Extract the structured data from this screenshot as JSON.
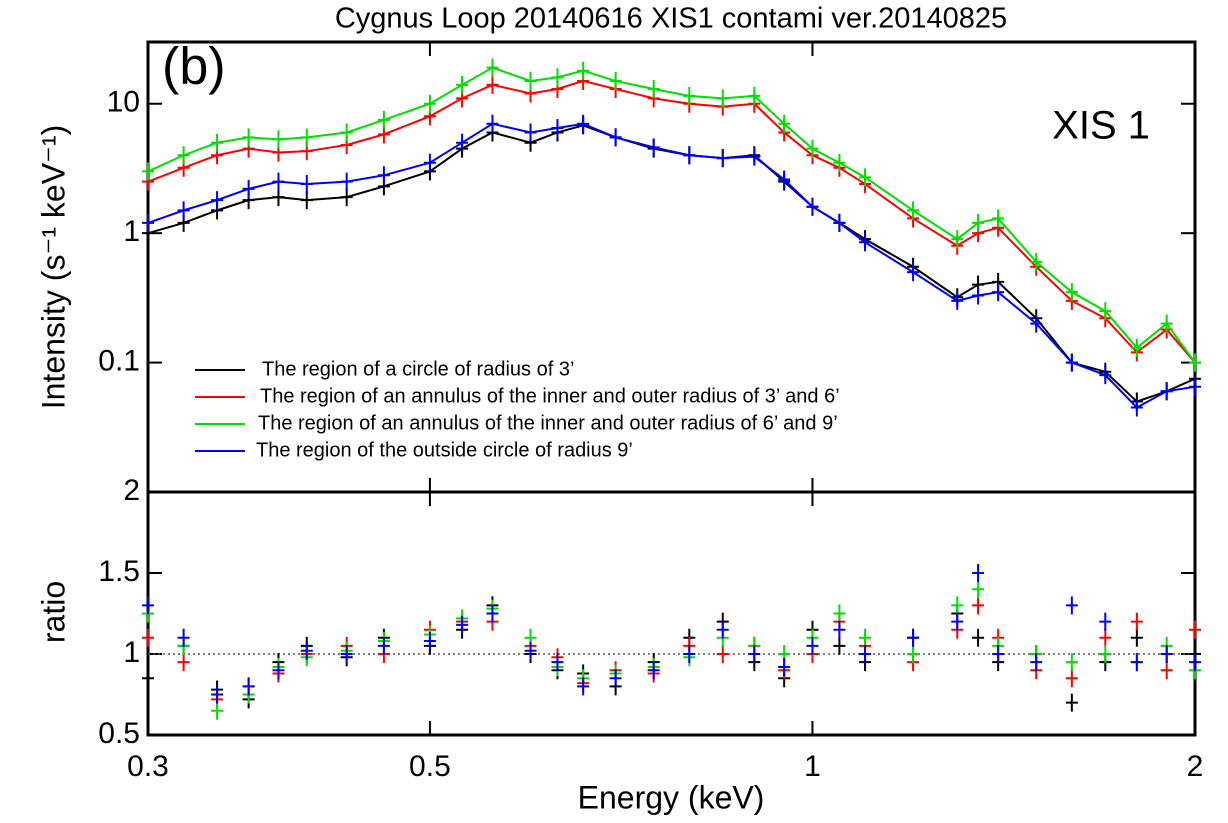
{
  "chart_data": [
    {
      "type": "line",
      "title": "Cygnus Loop 20140616 XIS1 contami ver.20140825",
      "annotations": [
        "(b)",
        "XIS 1"
      ],
      "y_label": "Intensity (s⁻¹ keV⁻¹)",
      "log_scale": true,
      "legend": "lower left",
      "xlim": [
        0.3,
        2
      ],
      "ylim": [
        0.01,
        30
      ],
      "yticks": [
        0.1,
        1,
        10
      ],
      "x": [
        0.3,
        0.32,
        0.34,
        0.36,
        0.38,
        0.4,
        0.43,
        0.46,
        0.5,
        0.53,
        0.56,
        0.6,
        0.63,
        0.66,
        0.7,
        0.75,
        0.8,
        0.85,
        0.9,
        0.95,
        1.0,
        1.05,
        1.1,
        1.2,
        1.3,
        1.35,
        1.4,
        1.5,
        1.6,
        1.7,
        1.8,
        1.9,
        2.0
      ],
      "series": [
        {
          "name": "The region of a circle of radius of 3’",
          "color": "#000000",
          "values": [
            1.0,
            1.2,
            1.5,
            1.8,
            1.9,
            1.8,
            1.9,
            2.3,
            3.0,
            4.5,
            6.0,
            5.0,
            6.0,
            6.8,
            5.5,
            4.5,
            4.0,
            3.8,
            4.0,
            2.5,
            1.6,
            1.2,
            0.9,
            0.55,
            0.32,
            0.4,
            0.42,
            0.22,
            0.1,
            0.085,
            0.05,
            0.06,
            0.075
          ]
        },
        {
          "name": "The region of an annulus of the inner and outer radius of 3’ and 6’",
          "color": "#ff0000",
          "values": [
            2.5,
            3.2,
            4.0,
            4.5,
            4.2,
            4.3,
            4.8,
            5.8,
            8.0,
            11,
            14,
            12,
            13,
            15,
            13,
            11,
            10,
            9.5,
            10,
            6.0,
            4.0,
            3.2,
            2.4,
            1.3,
            0.8,
            1.0,
            1.1,
            0.55,
            0.3,
            0.22,
            0.12,
            0.18,
            0.1
          ]
        },
        {
          "name": "The region of an annulus of the inner and outer radius of 6’ and 9’",
          "color": "#00e000",
          "values": [
            3.0,
            4.0,
            5.0,
            5.5,
            5.3,
            5.5,
            6.0,
            7.5,
            10,
            14,
            19,
            15,
            16,
            18,
            15,
            13,
            11.5,
            11,
            11.5,
            7.0,
            4.5,
            3.5,
            2.7,
            1.5,
            0.9,
            1.2,
            1.3,
            0.6,
            0.35,
            0.25,
            0.13,
            0.2,
            0.1
          ]
        },
        {
          "name": "The region of the outside circle of radius 9’",
          "color": "#0000ff",
          "values": [
            1.2,
            1.5,
            1.8,
            2.2,
            2.5,
            2.4,
            2.5,
            2.8,
            3.5,
            5.0,
            7.0,
            6.0,
            6.5,
            7.0,
            5.5,
            4.6,
            4.0,
            3.8,
            3.9,
            2.6,
            1.6,
            1.2,
            0.85,
            0.5,
            0.3,
            0.33,
            0.35,
            0.2,
            0.1,
            0.08,
            0.045,
            0.06,
            0.065
          ]
        }
      ]
    },
    {
      "type": "scatter",
      "x_label": "Energy (keV)",
      "y_label": "ratio",
      "xlim": [
        0.3,
        2
      ],
      "xticks": [
        0.3,
        0.5,
        1,
        2
      ],
      "log_scale": true,
      "ylim": [
        0.5,
        2
      ],
      "yticks": [
        0.5,
        1,
        1.5,
        2
      ],
      "reference_line": 1,
      "x": [
        0.3,
        0.32,
        0.34,
        0.36,
        0.38,
        0.4,
        0.43,
        0.46,
        0.5,
        0.53,
        0.56,
        0.6,
        0.63,
        0.66,
        0.7,
        0.75,
        0.8,
        0.85,
        0.9,
        0.95,
        1.0,
        1.05,
        1.1,
        1.2,
        1.3,
        1.35,
        1.4,
        1.5,
        1.6,
        1.7,
        1.8,
        1.9,
        2.0
      ],
      "series": [
        {
          "color": "#000000",
          "values": [
            0.85,
            1.05,
            0.78,
            0.72,
            0.95,
            1.05,
            0.98,
            1.1,
            1.05,
            1.15,
            1.3,
            1.0,
            0.9,
            0.88,
            0.8,
            0.95,
            1.1,
            1.2,
            0.95,
            0.85,
            1.15,
            1.05,
            0.95,
            1.1,
            1.25,
            1.1,
            0.95,
            1.0,
            0.7,
            0.95,
            1.1,
            1.0,
            1.0
          ]
        },
        {
          "color": "#ff0000",
          "values": [
            1.1,
            0.95,
            0.72,
            0.8,
            0.88,
            1.0,
            1.05,
            1.0,
            1.15,
            1.2,
            1.2,
            1.05,
            0.98,
            0.82,
            0.9,
            0.88,
            1.05,
            1.0,
            1.05,
            0.9,
            1.0,
            1.2,
            1.05,
            0.95,
            1.15,
            1.3,
            1.1,
            0.9,
            0.85,
            1.1,
            1.2,
            0.9,
            1.15
          ]
        },
        {
          "color": "#00e000",
          "values": [
            1.25,
            1.05,
            0.65,
            0.75,
            0.92,
            0.98,
            1.02,
            1.08,
            1.12,
            1.22,
            1.28,
            1.1,
            0.92,
            0.85,
            0.88,
            0.92,
            0.98,
            1.1,
            1.05,
            1.0,
            1.1,
            1.25,
            1.1,
            1.0,
            1.3,
            1.4,
            1.05,
            1.0,
            0.95,
            1.0,
            0.95,
            1.05,
            0.9
          ]
        },
        {
          "color": "#0000ff",
          "values": [
            1.3,
            1.1,
            0.75,
            0.8,
            0.9,
            1.02,
            1.0,
            1.05,
            1.08,
            1.18,
            1.25,
            1.02,
            0.95,
            0.8,
            0.85,
            0.9,
            1.0,
            1.15,
            1.0,
            0.92,
            1.05,
            1.15,
            1.0,
            1.1,
            1.2,
            1.5,
            1.0,
            0.95,
            1.3,
            1.2,
            0.95,
            1.0,
            0.95
          ]
        }
      ]
    }
  ]
}
